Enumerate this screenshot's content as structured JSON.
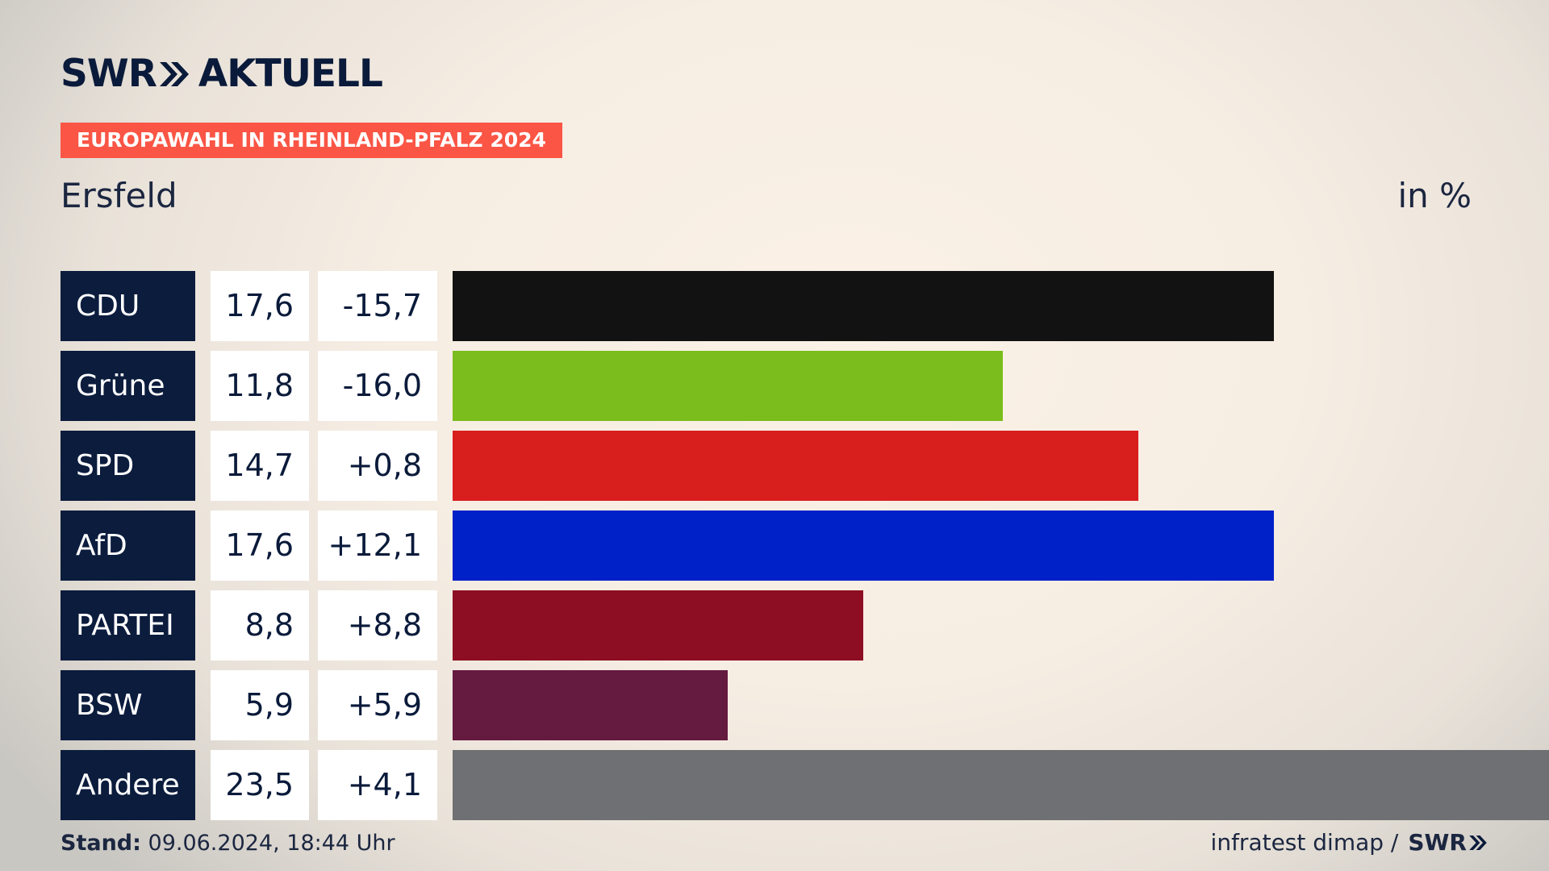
{
  "header": {
    "logo_part1": "SWR",
    "logo_part2": "AKTUELL",
    "banner": "EUROPAWAHL IN RHEINLAND-PFALZ 2024",
    "region": "Ersfeld",
    "unit": "in %"
  },
  "chart_data": {
    "type": "bar",
    "categories": [
      "CDU",
      "Grüne",
      "SPD",
      "AfD",
      "PARTEI",
      "BSW",
      "Andere"
    ],
    "values": [
      17.6,
      11.8,
      14.7,
      17.6,
      8.8,
      5.9,
      23.5
    ],
    "values_label": [
      "17,6",
      "11,8",
      "14,7",
      "17,6",
      "8,8",
      "5,9",
      "23,5"
    ],
    "changes": [
      -15.7,
      -16.0,
      0.8,
      12.1,
      8.8,
      5.9,
      4.1
    ],
    "changes_label": [
      "-15,7",
      "-16,0",
      "+0,8",
      "+12,1",
      "+8,8",
      "+5,9",
      "+4,1"
    ],
    "colors": [
      "#121212",
      "#7bbd1c",
      "#d91e1e",
      "#0020c8",
      "#8d0e22",
      "#651a40",
      "#6f7073"
    ],
    "xlim": [
      0,
      23.5
    ],
    "grid": false,
    "legend": "none"
  },
  "footer": {
    "stand_label": "Stand:",
    "stand_value": "09.06.2024, 18:44 Uhr",
    "source": "infratest dimap /",
    "brand": "SWR"
  },
  "colors": {
    "navy": "#0b1c3d",
    "banner": "#fa5545"
  },
  "icons": {
    "logo_chevron": "double-chevron-right-icon"
  }
}
